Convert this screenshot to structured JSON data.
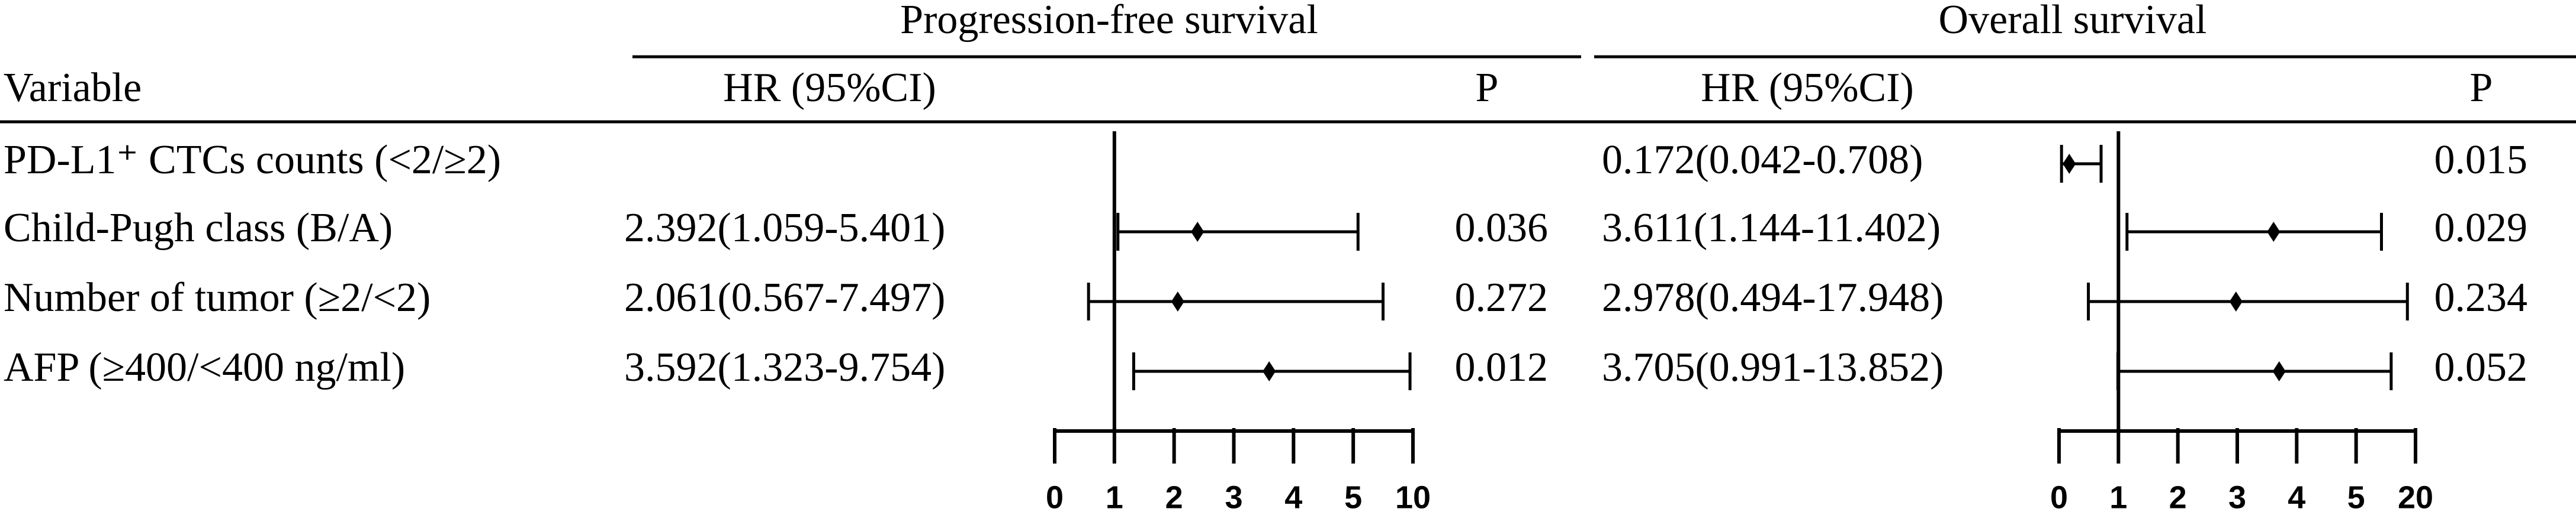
{
  "table": {
    "variable_header": "Variable",
    "variables": [
      "PD-L1⁺ CTCs counts (<2/≥2)",
      "Child-Pugh class (B/A)",
      "Number of tumor (≥2/<2)",
      "AFP (≥400/<400 ng/ml)"
    ]
  },
  "chart_data": [
    {
      "type": "forest",
      "title": "Progression-free survival",
      "hr_header": "HR (95%CI)",
      "p_header": "P",
      "values": [
        null,
        2.392,
        2.061,
        3.592
      ],
      "lower": [
        null,
        1.059,
        0.567,
        1.323
      ],
      "upper": [
        null,
        5.401,
        7.497,
        9.754
      ],
      "value_labels": [
        null,
        "2.392(1.059-5.401)",
        "2.061(0.567-7.497)",
        "3.592(1.323-9.754)"
      ],
      "p": [
        null,
        0.036,
        0.272,
        0.012
      ],
      "xlim": [
        0,
        10
      ],
      "xticks": [
        0,
        1,
        2,
        3,
        4,
        5,
        10
      ],
      "reference": 1
    },
    {
      "type": "forest",
      "title": "Overall survival",
      "hr_header": "HR (95%CI)",
      "p_header": "P",
      "values": [
        0.172,
        3.611,
        2.978,
        3.705
      ],
      "lower": [
        0.042,
        1.144,
        0.494,
        0.991
      ],
      "upper": [
        0.708,
        11.402,
        17.948,
        13.852
      ],
      "value_labels": [
        "0.172(0.042-0.708)",
        "3.611(1.144-11.402)",
        "2.978(0.494-17.948)",
        "3.705(0.991-13.852)"
      ],
      "p": [
        0.015,
        0.029,
        0.234,
        0.052
      ],
      "xlim": [
        0,
        20
      ],
      "xticks": [
        0,
        1,
        2,
        3,
        4,
        5,
        20
      ],
      "reference": 1
    }
  ]
}
